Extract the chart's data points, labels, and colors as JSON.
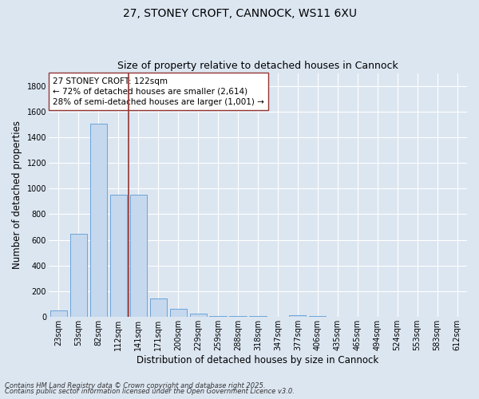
{
  "title_line1": "27, STONEY CROFT, CANNOCK, WS11 6XU",
  "title_line2": "Size of property relative to detached houses in Cannock",
  "xlabel": "Distribution of detached houses by size in Cannock",
  "ylabel": "Number of detached properties",
  "bar_labels": [
    "23sqm",
    "53sqm",
    "82sqm",
    "112sqm",
    "141sqm",
    "171sqm",
    "200sqm",
    "229sqm",
    "259sqm",
    "288sqm",
    "318sqm",
    "347sqm",
    "377sqm",
    "406sqm",
    "435sqm",
    "465sqm",
    "494sqm",
    "524sqm",
    "553sqm",
    "583sqm",
    "612sqm"
  ],
  "bar_values": [
    47,
    650,
    1510,
    955,
    950,
    140,
    62,
    22,
    8,
    5,
    2,
    1,
    12,
    2,
    0,
    0,
    0,
    0,
    0,
    0,
    0
  ],
  "bar_color": "#c5d8ed",
  "bar_edgecolor": "#5b9bd5",
  "fig_background_color": "#dce6f1",
  "plot_background": "#dce6f1",
  "vline_index": 3,
  "vline_color": "#943634",
  "annotation_title": "27 STONEY CROFT: 122sqm",
  "annotation_line1": "← 72% of detached houses are smaller (2,614)",
  "annotation_line2": "28% of semi-detached houses are larger (1,001) →",
  "annotation_box_facecolor": "#ffffff",
  "annotation_box_edgecolor": "#943634",
  "ylim": [
    0,
    1900
  ],
  "yticks": [
    0,
    200,
    400,
    600,
    800,
    1000,
    1200,
    1400,
    1600,
    1800
  ],
  "grid_color": "#ffffff",
  "title_fontsize": 10,
  "subtitle_fontsize": 9,
  "axis_label_fontsize": 8.5,
  "tick_fontsize": 7,
  "annotation_fontsize": 7.5,
  "footnote_fontsize": 6,
  "footnote_line1": "Contains HM Land Registry data © Crown copyright and database right 2025.",
  "footnote_line2": "Contains public sector information licensed under the Open Government Licence v3.0."
}
